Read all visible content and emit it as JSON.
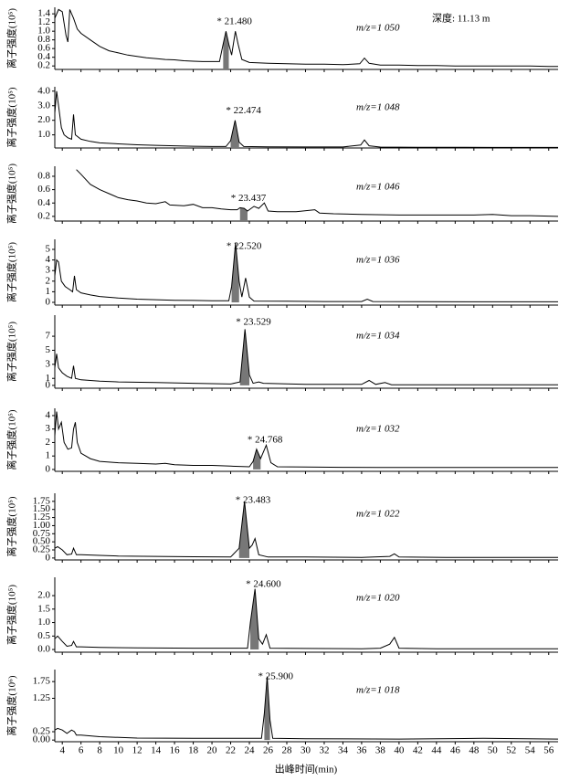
{
  "shared_x": {
    "label": "出峰时间(min)",
    "xlim": [
      3.2,
      57
    ],
    "xticks": [
      4,
      6,
      8,
      10,
      12,
      14,
      16,
      18,
      20,
      22,
      24,
      26,
      28,
      30,
      32,
      34,
      36,
      38,
      40,
      42,
      44,
      46,
      48,
      50,
      52,
      54,
      56
    ]
  },
  "depth_label": "深度: 11.13 m",
  "chart_data": [
    {
      "type": "line",
      "ylabel": "离子强度(10⁵)",
      "peak_label": "* 21.480",
      "mz_label": "m/z=1 050",
      "color": "#000",
      "highlight": [
        20.9,
        22.0
      ],
      "ylim": [
        0.12,
        1.55
      ],
      "yticks": [
        0.2,
        0.4,
        0.6,
        0.8,
        {
          "value": 1.0,
          "label": "1.0"
        },
        1.2,
        1.4
      ],
      "x": [
        3.2,
        3.6,
        4.0,
        4.4,
        4.6,
        4.8,
        5.2,
        5.6,
        6,
        7,
        8,
        9,
        10,
        11,
        12,
        13,
        14,
        15,
        16,
        17,
        18,
        19,
        20,
        20.8,
        21.2,
        21.5,
        21.8,
        22.1,
        22.5,
        22.8,
        23.2,
        24,
        26,
        28,
        30,
        32,
        34,
        35.8,
        36.3,
        36.8,
        38,
        40,
        42,
        44,
        46,
        48,
        50,
        52,
        54,
        56,
        57
      ],
      "values": [
        1.3,
        1.5,
        1.45,
        0.9,
        0.75,
        1.5,
        1.3,
        1.05,
        0.95,
        0.8,
        0.65,
        0.55,
        0.5,
        0.45,
        0.42,
        0.39,
        0.37,
        0.35,
        0.34,
        0.32,
        0.31,
        0.3,
        0.3,
        0.3,
        0.7,
        1.0,
        0.7,
        0.45,
        1.0,
        0.7,
        0.35,
        0.28,
        0.26,
        0.25,
        0.24,
        0.24,
        0.23,
        0.25,
        0.38,
        0.26,
        0.22,
        0.22,
        0.21,
        0.21,
        0.2,
        0.2,
        0.2,
        0.2,
        0.2,
        0.19,
        0.19
      ]
    },
    {
      "type": "line",
      "ylabel": "离子强度(10⁵)",
      "peak_label": "* 22.474",
      "mz_label": "m/z=1 048",
      "color": "#000",
      "highlight": [
        21.9,
        23.0
      ],
      "ylim": [
        0.1,
        4.3
      ],
      "yticks": [
        {
          "value": 1.0,
          "label": "1.0"
        },
        {
          "value": 2.0,
          "label": "2.0"
        },
        {
          "value": 3.0,
          "label": "3.0"
        },
        {
          "value": 4.0,
          "label": "4.0"
        }
      ],
      "x": [
        3.2,
        3.4,
        3.6,
        3.9,
        4.2,
        4.6,
        5.0,
        5.2,
        5.4,
        6,
        7,
        8,
        10,
        12,
        14,
        16,
        18,
        20,
        21.5,
        22.0,
        22.474,
        22.9,
        23.4,
        26,
        30,
        34,
        35.9,
        36.3,
        36.8,
        38,
        42,
        46,
        50,
        54,
        57
      ],
      "values": [
        2.5,
        4.0,
        3.0,
        1.5,
        1.0,
        0.8,
        0.7,
        2.4,
        1.0,
        0.7,
        0.55,
        0.45,
        0.38,
        0.32,
        0.28,
        0.25,
        0.22,
        0.2,
        0.2,
        0.6,
        2.0,
        0.5,
        0.2,
        0.18,
        0.17,
        0.17,
        0.3,
        0.65,
        0.25,
        0.16,
        0.15,
        0.15,
        0.14,
        0.14,
        0.14
      ]
    },
    {
      "type": "line",
      "ylabel": "离子强度(10⁵)",
      "peak_label": "* 23.437",
      "mz_label": "m/z=1 046",
      "color": "#000",
      "highlight": [
        23.0,
        23.8
      ],
      "ylim": [
        0.13,
        0.95
      ],
      "yticks": [
        0.2,
        0.4,
        0.6,
        0.8
      ],
      "x": [
        5.5,
        6,
        7,
        8,
        9,
        10,
        11,
        12,
        13,
        14,
        15,
        15.5,
        17,
        18,
        19,
        20,
        21,
        22,
        22.7,
        23,
        23.437,
        23.8,
        24.5,
        25,
        25.6,
        26,
        27,
        29,
        31,
        31.5,
        33,
        36,
        40,
        44,
        48,
        50,
        52,
        54,
        57
      ],
      "values": [
        0.9,
        0.83,
        0.68,
        0.6,
        0.54,
        0.48,
        0.45,
        0.43,
        0.4,
        0.39,
        0.42,
        0.37,
        0.36,
        0.38,
        0.33,
        0.33,
        0.31,
        0.3,
        0.3,
        0.33,
        0.32,
        0.28,
        0.35,
        0.32,
        0.4,
        0.28,
        0.27,
        0.27,
        0.3,
        0.25,
        0.24,
        0.23,
        0.22,
        0.22,
        0.22,
        0.23,
        0.21,
        0.21,
        0.2
      ]
    },
    {
      "type": "line",
      "ylabel": "离子强度(10⁵)",
      "peak_label": "* 22.520",
      "mz_label": "m/z=1 036",
      "color": "#000",
      "highlight": [
        21.9,
        23.1
      ],
      "ylim": [
        -0.26,
        5.95
      ],
      "yticks": [
        0,
        1,
        2,
        3,
        4,
        5
      ],
      "x": [
        3.2,
        3.4,
        3.6,
        3.9,
        4.3,
        4.8,
        5.1,
        5.3,
        5.5,
        6,
        7,
        8,
        10,
        12,
        14,
        16,
        18,
        20,
        21.8,
        22.1,
        22.52,
        22.9,
        23.2,
        23.6,
        24,
        24.5,
        28,
        32,
        36,
        36.6,
        37.2,
        42,
        48,
        52,
        57
      ],
      "values": [
        2.5,
        4.0,
        3.8,
        2.0,
        1.5,
        1.2,
        1.0,
        2.5,
        1.2,
        0.9,
        0.7,
        0.55,
        0.4,
        0.3,
        0.25,
        0.2,
        0.18,
        0.15,
        0.15,
        1.5,
        5.6,
        2.0,
        0.5,
        2.3,
        0.5,
        0.12,
        0.1,
        0.08,
        0.08,
        0.3,
        0.08,
        0.06,
        0.05,
        0.05,
        0.05
      ]
    },
    {
      "type": "line",
      "ylabel": "离子强度(10⁵)",
      "peak_label": "* 23.529",
      "mz_label": "m/z=1 034",
      "color": "#000",
      "highlight": [
        22.9,
        24.1
      ],
      "ylim": [
        -0.4,
        10
      ],
      "yticks": [
        0,
        1,
        3,
        5,
        7
      ],
      "x": [
        3.2,
        3.4,
        3.6,
        4,
        4.5,
        5.0,
        5.2,
        5.4,
        6,
        8,
        10,
        14,
        18,
        22,
        23.0,
        23.529,
        24,
        24.4,
        25,
        25.5,
        30,
        36,
        36.8,
        37.5,
        38.5,
        39.2,
        44,
        50,
        57
      ],
      "values": [
        2.5,
        4.5,
        2.5,
        1.8,
        1.3,
        1.0,
        2.8,
        1.0,
        0.8,
        0.6,
        0.5,
        0.4,
        0.3,
        0.2,
        0.5,
        8.0,
        1.5,
        0.3,
        0.5,
        0.3,
        0.15,
        0.15,
        0.7,
        0.15,
        0.4,
        0.1,
        0.1,
        0.08,
        0.08
      ]
    },
    {
      "type": "line",
      "ylabel": "离子强度(10⁵)",
      "peak_label": "* 24.768",
      "mz_label": "m/z=1 032",
      "color": "#000",
      "highlight": [
        24.2,
        25.3
      ],
      "ylim": [
        -0.14,
        4.54
      ],
      "yticks": [
        0,
        1,
        2,
        3,
        4
      ],
      "x": [
        3.2,
        3.4,
        3.6,
        3.9,
        4.2,
        4.6,
        5.0,
        5.2,
        5.4,
        5.6,
        6,
        7,
        8,
        10,
        12,
        14,
        15,
        16,
        18,
        20,
        22,
        24,
        24.4,
        24.768,
        25.2,
        25.8,
        26.3,
        27,
        30,
        34,
        38,
        42,
        48,
        54,
        57
      ],
      "values": [
        2.5,
        4.3,
        3.0,
        3.5,
        2.0,
        1.5,
        1.6,
        3.0,
        3.5,
        2.0,
        1.2,
        0.8,
        0.6,
        0.5,
        0.45,
        0.4,
        0.45,
        0.35,
        0.3,
        0.3,
        0.25,
        0.2,
        0.6,
        1.5,
        0.8,
        1.8,
        0.5,
        0.2,
        0.18,
        0.16,
        0.15,
        0.15,
        0.15,
        0.15,
        0.15
      ]
    },
    {
      "type": "line",
      "ylabel": "离子强度(10⁵)",
      "peak_label": "* 23.483",
      "mz_label": "m/z=1 022",
      "color": "#000",
      "highlight": [
        22.8,
        24.0
      ],
      "ylim": [
        -0.06,
        2.0
      ],
      "yticks": [
        0,
        0.25,
        {
          "value": 0.5,
          "label": "0.50"
        },
        0.75,
        {
          "value": 1.0,
          "label": "1.00"
        },
        1.25,
        {
          "value": 1.5,
          "label": "1.50"
        },
        1.75
      ],
      "x": [
        3.2,
        3.5,
        4,
        4.5,
        5,
        5.2,
        5.5,
        6,
        8,
        10,
        14,
        18,
        22,
        22.9,
        23.483,
        24,
        24.3,
        24.6,
        25,
        26,
        30,
        36,
        39,
        39.5,
        40,
        45,
        57
      ],
      "values": [
        0.3,
        0.35,
        0.25,
        0.1,
        0.12,
        0.3,
        0.1,
        0.1,
        0.08,
        0.06,
        0.05,
        0.04,
        0.03,
        0.3,
        1.75,
        0.3,
        0.4,
        0.6,
        0.1,
        0.03,
        0.03,
        0.02,
        0.05,
        0.13,
        0.03,
        0.02,
        0.02
      ]
    },
    {
      "type": "line",
      "ylabel": "离子强度(10⁵)",
      "peak_label": "* 24.600",
      "mz_label": "m/z=1 020",
      "color": "#000",
      "highlight": [
        24.0,
        25.1
      ],
      "ylim": [
        -0.1,
        2.68
      ],
      "yticks": [
        {
          "value": 0,
          "label": "0.0"
        },
        0.5,
        {
          "value": 1.0,
          "label": "1.0"
        },
        1.5,
        {
          "value": 2.0,
          "label": "2.0"
        }
      ],
      "x": [
        3.2,
        3.5,
        4,
        4.5,
        5,
        5.2,
        5.5,
        6,
        8,
        12,
        18,
        23.8,
        24.1,
        24.6,
        25,
        25.4,
        25.8,
        26.2,
        30,
        36,
        38,
        39,
        39.5,
        40,
        44,
        57
      ],
      "values": [
        0.4,
        0.5,
        0.3,
        0.12,
        0.15,
        0.3,
        0.1,
        0.1,
        0.08,
        0.06,
        0.05,
        0.05,
        1.0,
        2.25,
        0.4,
        0.2,
        0.55,
        0.05,
        0.04,
        0.03,
        0.05,
        0.2,
        0.45,
        0.05,
        0.03,
        0.03
      ]
    },
    {
      "type": "line",
      "ylabel": "离子强度(10⁶)",
      "peak_label": "* 25.900",
      "mz_label": "m/z=1 018",
      "color": "#000",
      "highlight": [
        25.4,
        26.4
      ],
      "ylim": [
        -0.05,
        2.11
      ],
      "yticks": [
        {
          "value": 0,
          "label": "0.00"
        },
        0.25,
        1.25,
        1.75
      ],
      "x": [
        3.2,
        3.5,
        4,
        4.5,
        5,
        5.3,
        5.5,
        6,
        8,
        12,
        18,
        25.3,
        25.6,
        25.9,
        26.2,
        26.5,
        30,
        40,
        49,
        57
      ],
      "values": [
        0.3,
        0.35,
        0.3,
        0.2,
        0.3,
        0.25,
        0.15,
        0.15,
        0.1,
        0.06,
        0.05,
        0.05,
        0.8,
        1.9,
        0.6,
        0.05,
        0.04,
        0.03,
        0.05,
        0.03
      ]
    }
  ]
}
